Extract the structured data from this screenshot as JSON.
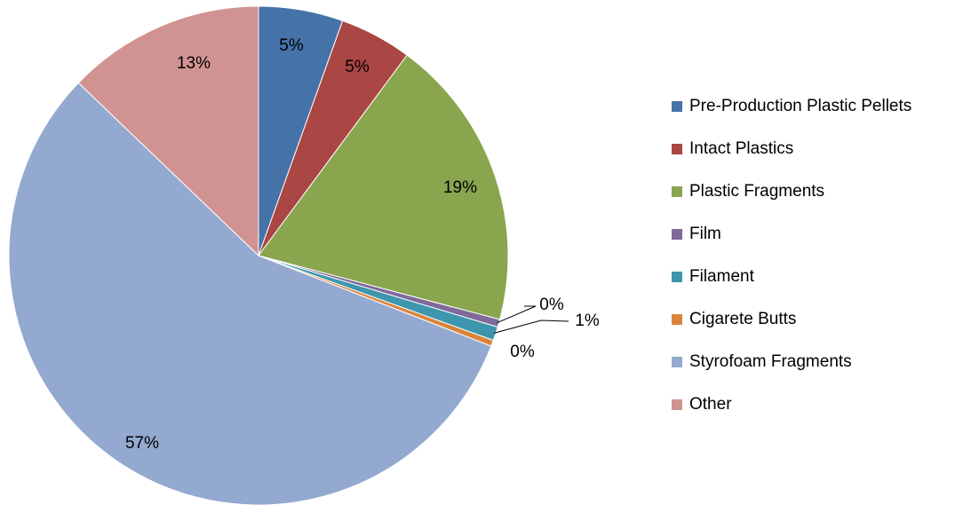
{
  "chart_data": {
    "type": "pie",
    "title": "",
    "start_angle_deg": 0,
    "direction": "clockwise",
    "legend_position": "right",
    "categories": [
      "Pre-Production Plastic Pellets",
      "Intact Plastics",
      "Plastic Fragments",
      "Film",
      "Filament",
      "Cigarete Butts",
      "Styrofoam Fragments",
      "Other"
    ],
    "values": [
      5.5,
      4.7,
      19.1,
      0.5,
      0.9,
      0.4,
      56.6,
      12.9
    ],
    "data_labels": [
      "5%",
      "5%",
      "19%",
      "0%",
      "1%",
      "0%",
      "57%",
      "13%"
    ],
    "colors": [
      "#4572A7",
      "#AA4643",
      "#89A54E",
      "#80699B",
      "#3D96AE",
      "#DB843D",
      "#93A9CF",
      "#D19392"
    ]
  }
}
